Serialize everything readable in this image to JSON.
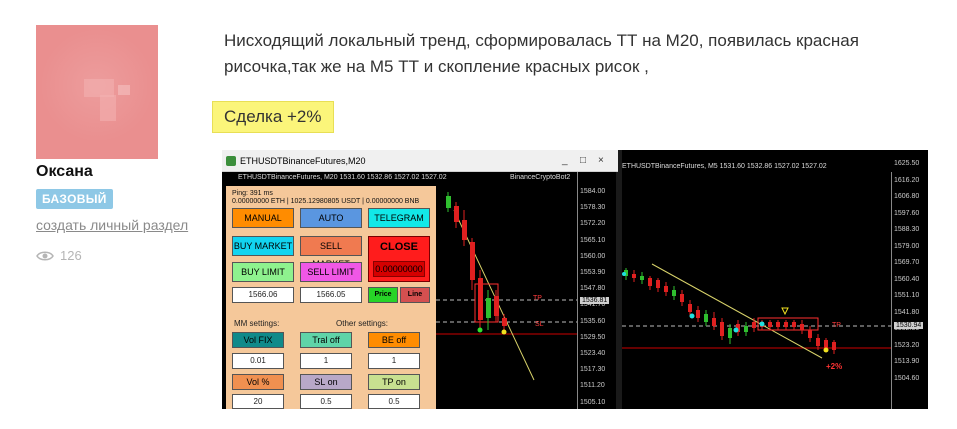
{
  "user": {
    "name": "Оксана",
    "badge": "БАЗОВЫЙ",
    "create_link": "создать личный раздел",
    "views": "126"
  },
  "post": {
    "text": "Нисходящий локальный тренд, сформировалась ТТ на М20, появилась красная рисочка,так же на М5 ТТ и скопление красных рисок ,",
    "deal_label": "Сделка +2%"
  },
  "screenshot": {
    "window_title": "ETHUSDTBinanceFutures,M20",
    "window_controls": [
      "_",
      "□",
      "×"
    ],
    "left_chart_header": "ETHUSDTBinanceFutures, M20 1531.60 1532.86 1527.02 1527.02",
    "left_chart_ea": "BinanceCryptoBot2",
    "right_chart_header": "ETHUSDTBinanceFutures, M5 1531.60 1532.86 1527.02 1527.02",
    "panel": {
      "ping": "Ping: 391 ms",
      "balance": "0.00000000 ETH | 1025.12980805 USDT | 0.00000000 BNB",
      "buttons": {
        "manual": "MANUAL",
        "auto": "AUTO",
        "telegram": "TELEGRAM",
        "buy_market": "BUY MARKET",
        "sell_market": "SELL MARKET",
        "close": "CLOSE",
        "close_value": "0.00000000",
        "buy_limit": "BUY LIMIT",
        "sell_limit": "SELL LIMIT",
        "price": "Price",
        "line": "Line",
        "vol_fix": "Vol FIX",
        "tral_off": "Tral off",
        "be_off": "BE off",
        "vol_pct": "Vol %",
        "sl_on": "SL on",
        "tp_on": "TP on"
      },
      "fields": {
        "buy_limit_price": "1566.06",
        "sell_limit_price": "1566.05",
        "vol": "0.01",
        "tral": "1",
        "be": "1",
        "vol_pct": "20",
        "sl": "0.5",
        "tp": "0.5"
      },
      "mm_label": "MM settings:",
      "other_label": "Other settings:"
    },
    "left_axis": [
      "1584.00",
      "1578.30",
      "1572.20",
      "1565.10",
      "1560.00",
      "1553.90",
      "1547.80",
      "1541.70",
      "1535.60",
      "1529.50",
      "1523.40",
      "1517.30",
      "1511.20",
      "1505.10"
    ],
    "left_axis_price": "1536.81",
    "left_tags": [
      "TP",
      "SL"
    ],
    "right_axis": [
      "1625.50",
      "1616.20",
      "1606.80",
      "1597.60",
      "1588.30",
      "1579.00",
      "1569.70",
      "1560.40",
      "1551.10",
      "1541.80",
      "1532.50",
      "1523.20",
      "1513.90",
      "1504.60"
    ],
    "right_axis_price": "1530.94",
    "right_tags": [
      "TP"
    ],
    "profit_label": "+2%",
    "colors": {
      "bull": "#2fbf2f",
      "bear": "#e02020",
      "trend": "#d9d36a",
      "panel": "#f5c89a"
    }
  }
}
